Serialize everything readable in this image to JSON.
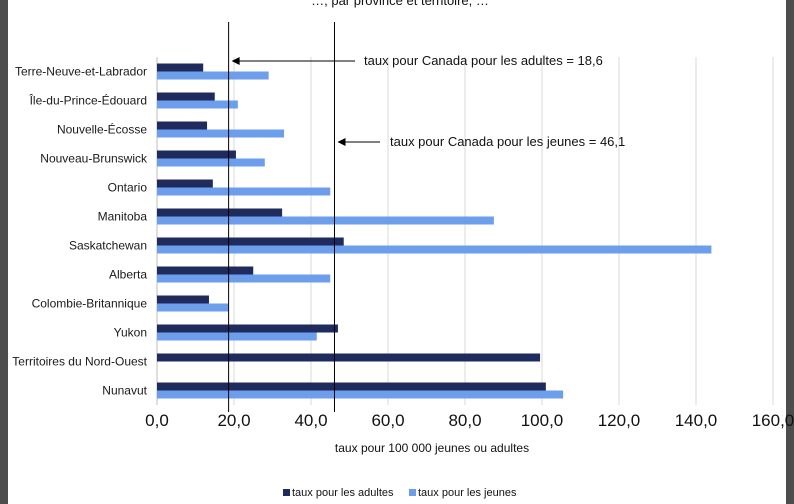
{
  "chart_data": {
    "type": "bar",
    "orientation": "horizontal",
    "title": "…, par province et territoire, …",
    "xlabel": "taux pour 100 000 jeunes ou adultes",
    "xlim": [
      0,
      160
    ],
    "xticks": [
      "0,0",
      "20,0",
      "40,0",
      "60,0",
      "80,0",
      "100,0",
      "120,0",
      "140,0",
      "160,0"
    ],
    "grid": true,
    "legend_position": "bottom",
    "categories": [
      "Terre-Neuve-et-Labrador",
      "Île-du-Prince-Édouard",
      "Nouvelle-Écosse",
      "Nouveau-Brunswick",
      "Ontario",
      "Manitoba",
      "Saskatchewan",
      "Alberta",
      "Colombie-Britannique",
      "Yukon",
      "Territoires du Nord-Ouest",
      "Nunavut"
    ],
    "series": [
      {
        "name": "taux pour les adultes",
        "color": "#1f2b5c",
        "values": [
          12,
          15,
          13,
          20.5,
          14.5,
          32.5,
          48.5,
          25,
          13.5,
          47,
          99.5,
          101
        ]
      },
      {
        "name": "taux pour les jeunes",
        "color": "#6d9eeb",
        "values": [
          29,
          21,
          33,
          28,
          45,
          87.5,
          144,
          45,
          18.5,
          41.5,
          0,
          105.5
        ]
      }
    ],
    "reference_lines": [
      {
        "value": 18.6,
        "label": "taux pour Canada pour les adultes = 18,6"
      },
      {
        "value": 46.1,
        "label": "taux pour Canada pour les jeunes = 46,1"
      }
    ]
  }
}
